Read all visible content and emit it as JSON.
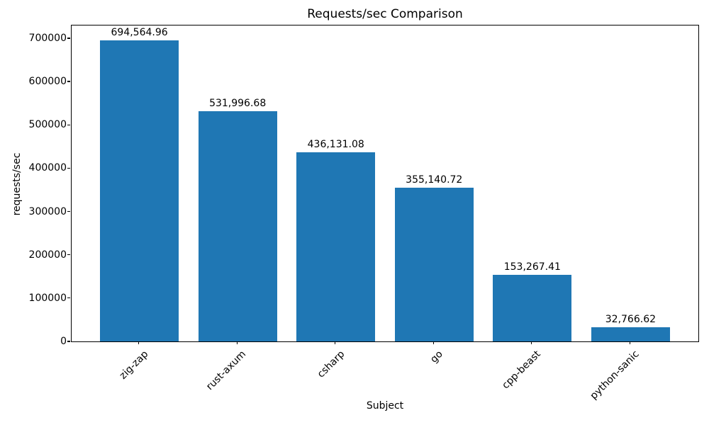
{
  "chart_data": {
    "type": "bar",
    "title": "Requests/sec Comparison",
    "xlabel": "Subject",
    "ylabel": "requests/sec",
    "categories": [
      "zig-zap",
      "rust-axum",
      "csharp",
      "go",
      "cpp-beast",
      "python-sanic"
    ],
    "values": [
      694564.96,
      531996.68,
      436131.08,
      355140.72,
      153267.41,
      32766.62
    ],
    "value_labels": [
      "694,564.96",
      "531,996.68",
      "436,131.08",
      "355,140.72",
      "153,267.41",
      "32,766.62"
    ],
    "y_tick_values": [
      0,
      100000,
      200000,
      300000,
      400000,
      500000,
      600000,
      700000
    ],
    "y_tick_labels": [
      "0",
      "100000",
      "200000",
      "300000",
      "400000",
      "500000",
      "600000",
      "700000"
    ],
    "ylim": [
      0,
      729293
    ],
    "xlim": [
      -0.69,
      5.69
    ],
    "bar_width_units": 0.8,
    "bar_color": "#1f77b4",
    "text_color": "#000000",
    "grid": false,
    "legend": false
  }
}
